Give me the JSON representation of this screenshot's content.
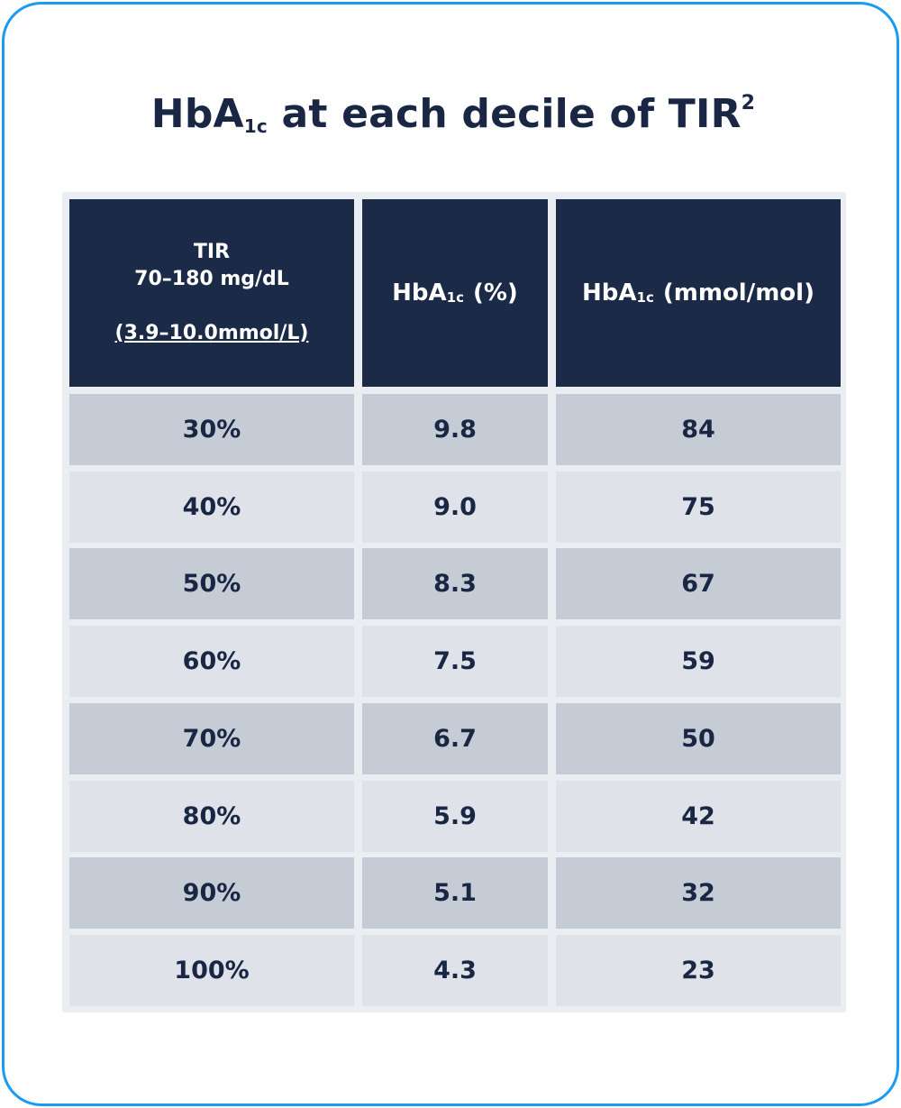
{
  "title": {
    "main": "HbA",
    "sub": "1c",
    "rest": " at each decile of TIR",
    "sup": "2"
  },
  "chart_data": {
    "type": "table",
    "headers": {
      "tir": {
        "line1": "TIR",
        "line2": "70–180 mg/dL",
        "line3": "(3.9–10.0mmol/L)"
      },
      "hba1c_percent": {
        "main": "HbA",
        "sub": "1c",
        "rest": "(%)"
      },
      "hba1c_mmol": {
        "main": "HbA",
        "sub": "1c",
        "rest": "(mmol/mol)"
      }
    },
    "rows": [
      {
        "tir": "30%",
        "hba1c_percent": "9.8",
        "hba1c_mmol": "84"
      },
      {
        "tir": "40%",
        "hba1c_percent": "9.0",
        "hba1c_mmol": "75"
      },
      {
        "tir": "50%",
        "hba1c_percent": "8.3",
        "hba1c_mmol": "67"
      },
      {
        "tir": "60%",
        "hba1c_percent": "7.5",
        "hba1c_mmol": "59"
      },
      {
        "tir": "70%",
        "hba1c_percent": "6.7",
        "hba1c_mmol": "50"
      },
      {
        "tir": "80%",
        "hba1c_percent": "5.9",
        "hba1c_mmol": "42"
      },
      {
        "tir": "90%",
        "hba1c_percent": "5.1",
        "hba1c_mmol": "32"
      },
      {
        "tir": "100%",
        "hba1c_percent": "4.3",
        "hba1c_mmol": "23"
      }
    ]
  },
  "colors": {
    "border": "#1a9af0",
    "header_bg": "#1b2a47",
    "row_dark": "#c6ccd6",
    "row_light": "#dfe3e9",
    "text": "#1a2744"
  }
}
